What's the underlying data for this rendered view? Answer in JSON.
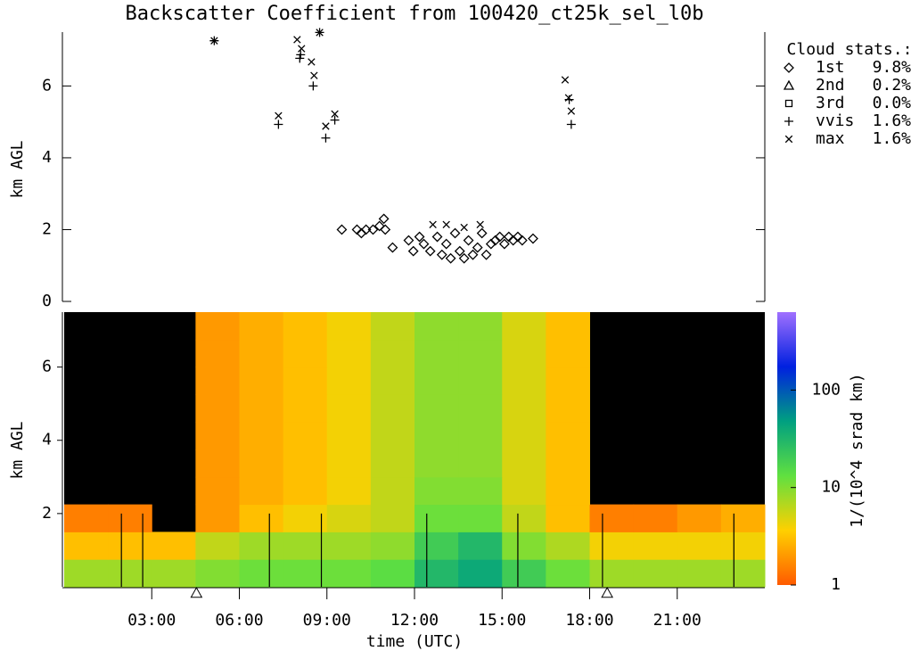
{
  "chart_data": [
    {
      "type": "scatter",
      "title": "Backscatter Coefficient from 100420_ct25k_sel_l0b",
      "y_label": "km AGL",
      "legend_title": "Cloud stats.:",
      "xlim": [
        0,
        24
      ],
      "ylim": [
        0,
        7.5
      ],
      "yticks": [
        0,
        2,
        4,
        6
      ],
      "series": [
        {
          "name": "1st",
          "fraction": "9.8%",
          "marker": "diamond",
          "color": "#000000",
          "x": [
            9.51,
            10.03,
            10.18,
            10.34,
            10.58,
            10.8,
            10.95,
            11.0,
            11.25,
            11.8,
            11.96,
            12.17,
            12.32,
            12.54,
            12.78,
            12.94,
            13.09,
            13.24,
            13.39,
            13.55,
            13.7,
            13.85,
            14.0,
            14.16,
            14.31,
            14.46,
            14.62,
            14.77,
            14.92,
            15.08,
            15.23,
            15.38,
            15.54,
            15.69,
            16.06
          ],
          "values": [
            2.0,
            2.0,
            1.9,
            2.0,
            2.0,
            2.1,
            2.3,
            2.0,
            1.5,
            1.7,
            1.4,
            1.8,
            1.6,
            1.4,
            1.8,
            1.3,
            1.6,
            1.2,
            1.9,
            1.4,
            1.2,
            1.7,
            1.3,
            1.5,
            1.9,
            1.3,
            1.6,
            1.7,
            1.8,
            1.6,
            1.8,
            1.7,
            1.8,
            1.7,
            1.75
          ]
        },
        {
          "name": "2nd",
          "fraction": "0.2%",
          "marker": "triangle",
          "color": "#000000",
          "x": [],
          "values": []
        },
        {
          "name": "3rd",
          "fraction": "0.0%",
          "marker": "square",
          "color": "#000000",
          "x": [],
          "values": []
        },
        {
          "name": "vvis",
          "fraction": "1.6%",
          "marker": "plus",
          "color": "#000000",
          "x": [
            5.14,
            7.34,
            8.07,
            8.1,
            8.53,
            8.75,
            8.96,
            9.27,
            17.3,
            17.37
          ],
          "values": [
            7.26,
            4.93,
            6.77,
            6.87,
            6.0,
            7.49,
            4.55,
            5.05,
            5.62,
            4.93
          ]
        },
        {
          "name": "max",
          "fraction": "1.6%",
          "marker": "cross",
          "color": "#000000",
          "x": [
            5.14,
            7.34,
            7.98,
            8.13,
            8.47,
            8.56,
            8.75,
            8.96,
            9.27,
            12.63,
            13.09,
            13.7,
            14.25,
            17.16,
            17.28,
            17.37
          ],
          "values": [
            7.26,
            5.17,
            7.29,
            7.04,
            6.67,
            6.29,
            7.49,
            4.88,
            5.22,
            2.14,
            2.14,
            2.06,
            2.14,
            6.17,
            5.67,
            5.3
          ]
        }
      ]
    },
    {
      "type": "heatmap",
      "x_label": "time (UTC)",
      "y_label": "km AGL",
      "colorbar_label": "1/(10^4 srad km)",
      "xlim": [
        0,
        24
      ],
      "ylim": [
        0,
        7.5
      ],
      "xticks": [
        {
          "value": 3,
          "label": "03:00"
        },
        {
          "value": 6,
          "label": "06:00"
        },
        {
          "value": 9,
          "label": "09:00"
        },
        {
          "value": 12,
          "label": "12:00"
        },
        {
          "value": 15,
          "label": "15:00"
        },
        {
          "value": 18,
          "label": "18:00"
        },
        {
          "value": 21,
          "label": "21:00"
        }
      ],
      "yticks": [
        2,
        4,
        6
      ],
      "clim": [
        1,
        630
      ],
      "cticks": [
        1,
        10,
        100
      ],
      "log_color": true,
      "colormap": [
        "#ff5a00",
        "#ffd000",
        "#60e040",
        "#00a080",
        "#0020e0",
        "#a070ff"
      ],
      "background": "#000000",
      "xbins": [
        0,
        1.5,
        3,
        4.5,
        6,
        7.5,
        9,
        10.5,
        12,
        13.5,
        15,
        16.5,
        18,
        19.5,
        21,
        22.5,
        24
      ],
      "ybins": [
        0,
        0.75,
        1.5,
        2.25,
        3,
        3.75,
        4.5,
        5.25,
        6,
        6.75,
        7.5
      ],
      "values": [
        [
          8,
          8,
          8,
          10,
          12,
          12,
          12,
          14,
          30,
          40,
          20,
          12,
          8,
          8,
          8,
          8
        ],
        [
          3,
          3,
          3,
          6,
          8,
          8,
          8,
          9,
          20,
          30,
          10,
          7,
          4,
          4,
          4,
          4
        ],
        [
          1.5,
          1.5,
          null,
          2,
          3,
          4,
          5,
          6,
          12,
          12,
          6,
          3,
          1.5,
          1.5,
          2,
          2.5
        ],
        [
          null,
          null,
          null,
          2,
          2.5,
          3,
          4,
          6,
          10,
          10,
          5,
          3,
          null,
          null,
          null,
          null
        ],
        [
          null,
          null,
          null,
          2,
          2.5,
          3,
          4,
          6,
          9,
          9,
          5,
          3,
          null,
          null,
          null,
          null
        ],
        [
          null,
          null,
          null,
          2,
          2.5,
          3,
          4,
          6,
          9,
          9,
          5,
          3,
          null,
          null,
          null,
          null
        ],
        [
          null,
          null,
          null,
          2,
          2.5,
          3,
          4,
          6,
          9,
          9,
          5,
          3,
          null,
          null,
          null,
          null
        ],
        [
          null,
          null,
          null,
          2,
          2.5,
          3,
          4,
          6,
          9,
          9,
          5,
          3,
          null,
          null,
          null,
          null
        ],
        [
          null,
          null,
          null,
          2,
          2.5,
          3,
          4,
          6,
          9,
          9,
          5,
          3,
          null,
          null,
          null,
          null
        ],
        [
          null,
          null,
          null,
          2,
          2.5,
          3,
          4,
          6,
          9,
          9,
          5,
          3,
          null,
          null,
          null,
          null
        ]
      ],
      "gap_x": [
        1.96,
        2.69,
        7.03,
        8.81,
        12.42,
        15.54,
        18.44,
        22.94
      ],
      "event_x": [
        4.53,
        18.6
      ]
    }
  ]
}
